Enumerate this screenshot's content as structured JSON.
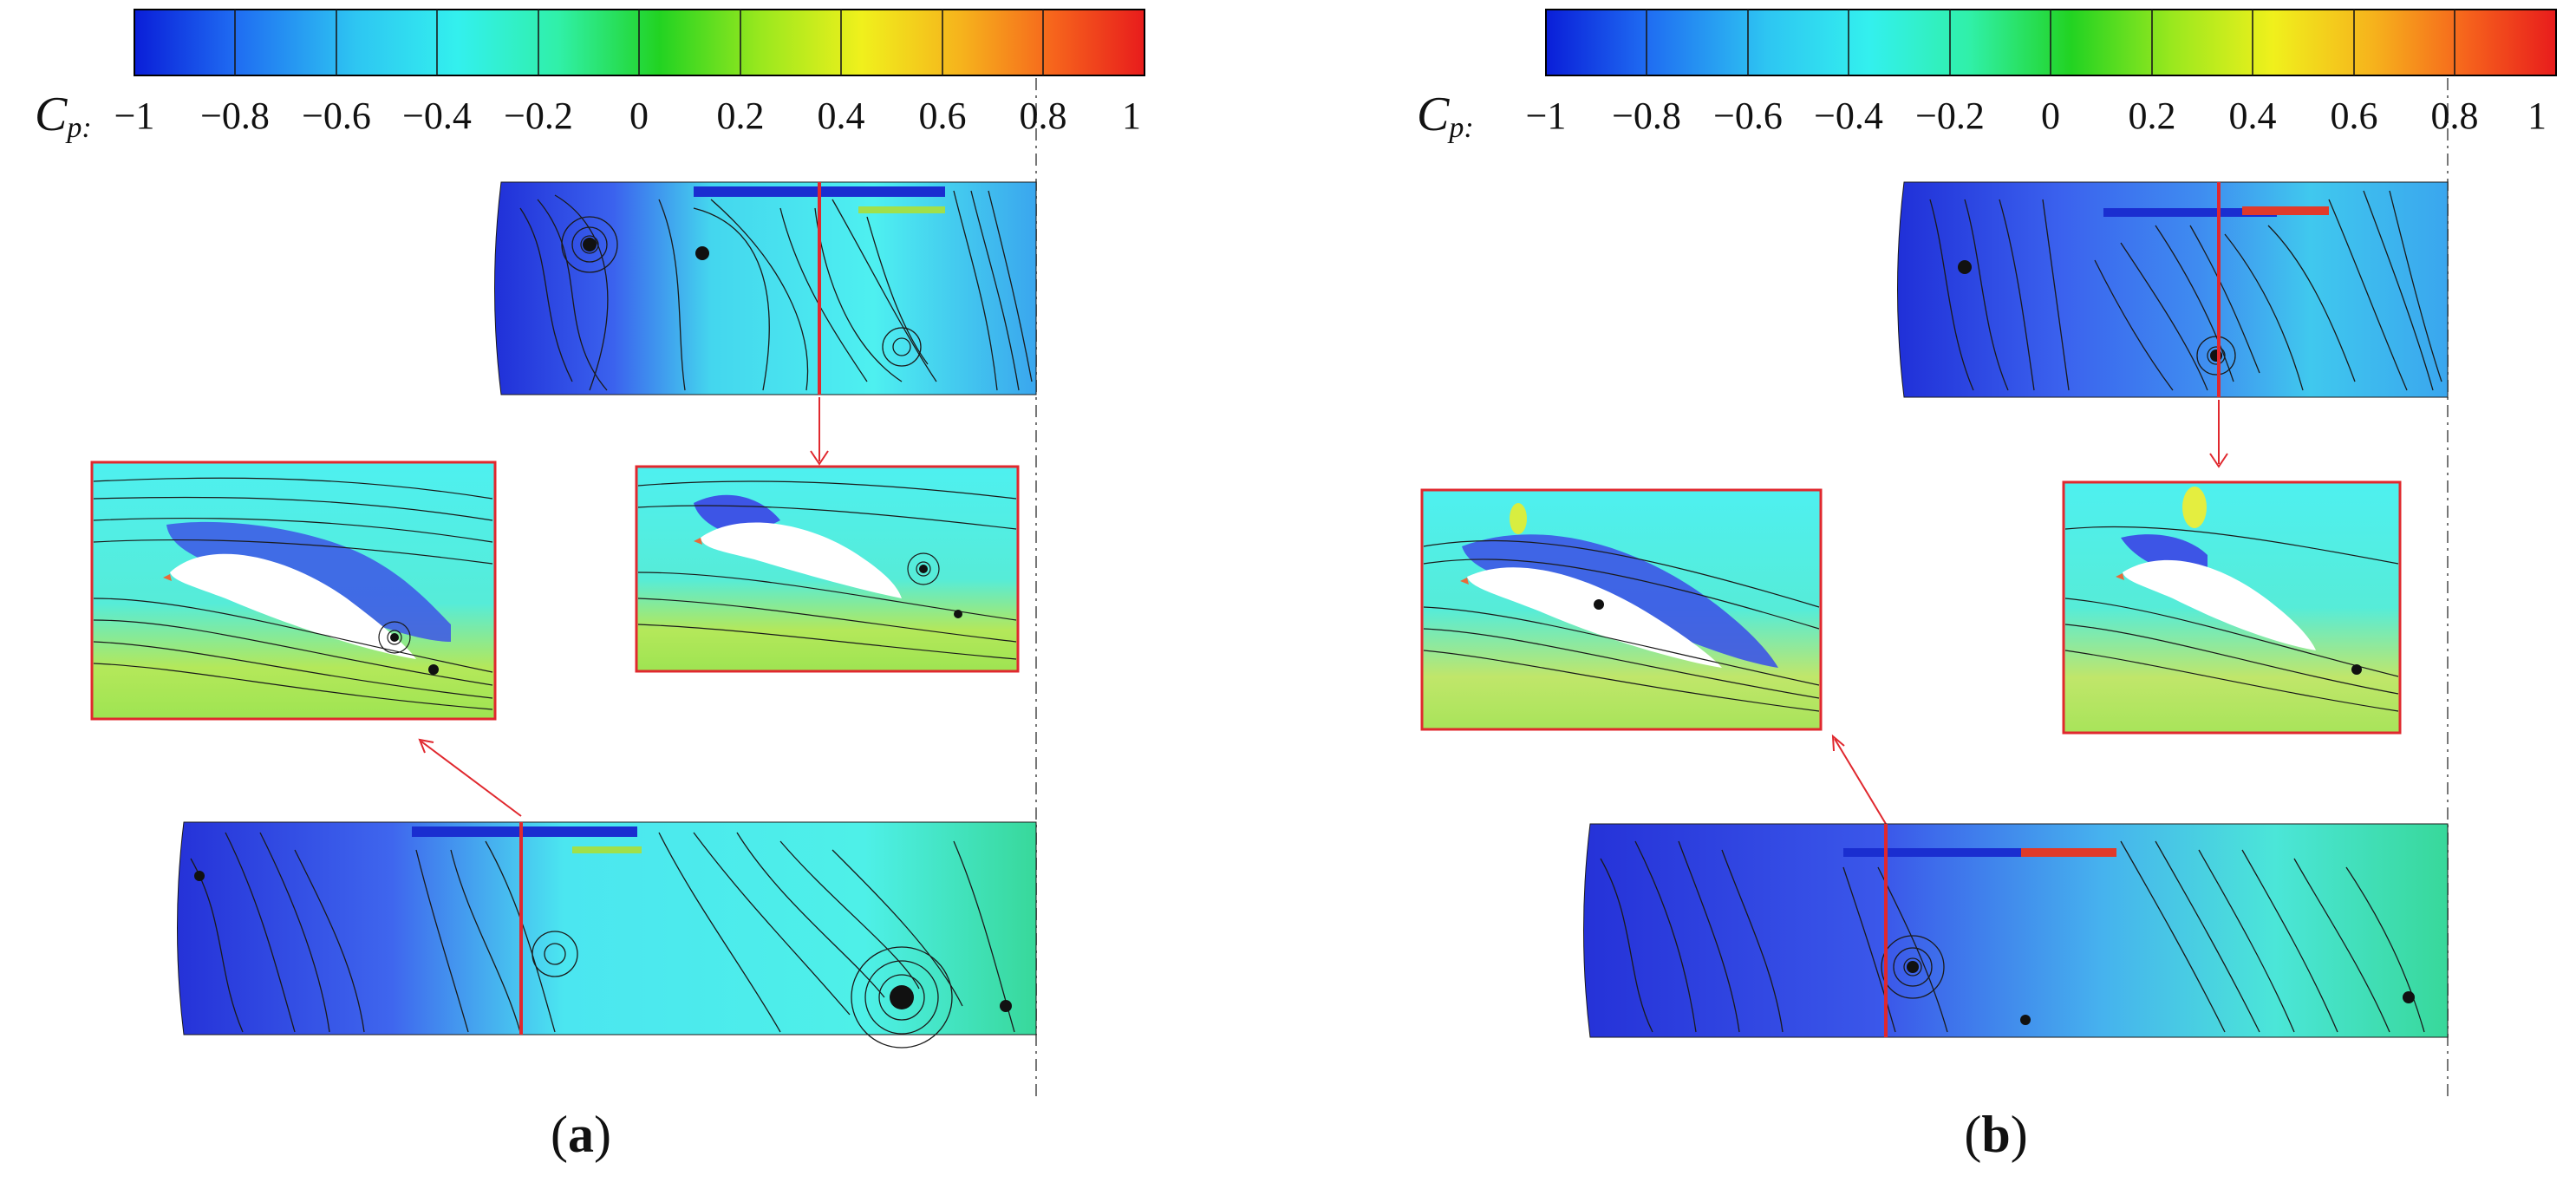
{
  "colorbar": {
    "variable": "C",
    "variable_subscript": "p:",
    "ticks": [
      "−1",
      "−0.8",
      "−0.6",
      "−0.4",
      "−0.2",
      "0",
      "0.2",
      "0.4",
      "0.6",
      "0.8",
      "1"
    ],
    "range": [
      -1,
      1
    ],
    "colors": [
      "#0a1ed8",
      "#1f6cf2",
      "#2ec6f2",
      "#33f0ee",
      "#30f0a8",
      "#22d322",
      "#9ae81e",
      "#f0f01c",
      "#f6b21c",
      "#f6641c",
      "#e81c1c"
    ]
  },
  "panels": [
    {
      "label": "a",
      "label_open": "(",
      "label_close": ")"
    },
    {
      "label": "b",
      "label_open": "(",
      "label_close": ")"
    }
  ],
  "colors": {
    "section_line": "#e0282e",
    "inset_border": "#e0282e",
    "streamline": "#1a1a1a",
    "suction_blue": "#3d55e6",
    "freestream_cyan": "#4ef0f0",
    "pressure_yellow": "#c8e84a"
  }
}
